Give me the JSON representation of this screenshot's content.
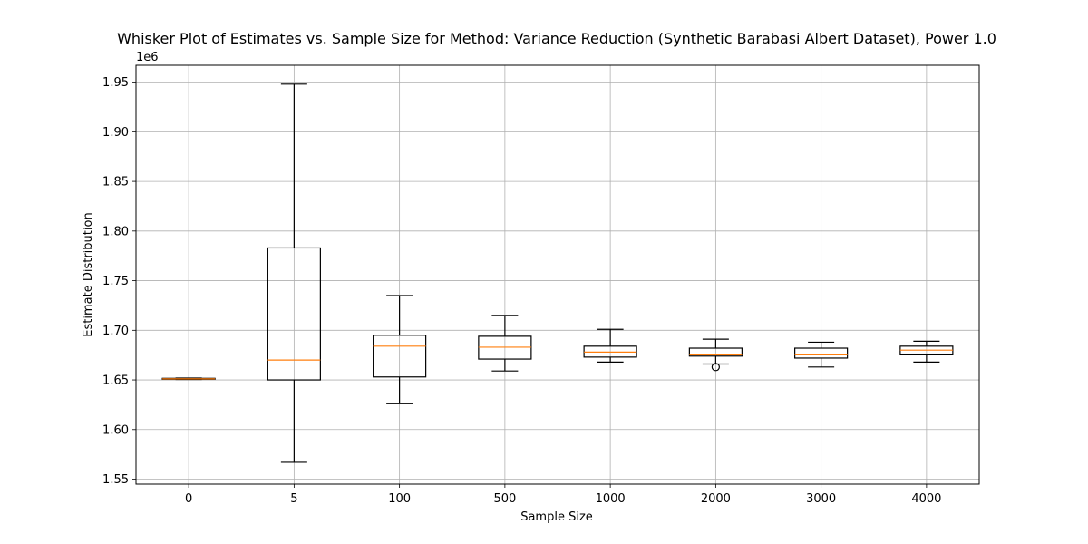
{
  "chart_data": {
    "type": "boxplot",
    "title": "Whisker Plot of Estimates vs. Sample Size for Method: Variance Reduction (Synthetic Barabasi Albert Dataset), Power 1.0",
    "xlabel": "Sample Size",
    "ylabel": "Estimate Distribution",
    "y_offset_label": "1e6",
    "ylim": [
      1.545,
      1.967
    ],
    "y_ticks": [
      1.55,
      1.6,
      1.65,
      1.7,
      1.75,
      1.8,
      1.85,
      1.9,
      1.95
    ],
    "y_tick_labels": [
      "1.55",
      "1.60",
      "1.65",
      "1.70",
      "1.75",
      "1.80",
      "1.85",
      "1.90",
      "1.95"
    ],
    "grid": true,
    "categories": [
      "0",
      "5",
      "100",
      "500",
      "1000",
      "2000",
      "3000",
      "4000"
    ],
    "boxes": [
      {
        "whislo": 1.6505,
        "q1": 1.6508,
        "med": 1.6511,
        "q3": 1.6516,
        "whishi": 1.6519,
        "fliers": []
      },
      {
        "whislo": 1.567,
        "q1": 1.65,
        "med": 1.67,
        "q3": 1.783,
        "whishi": 1.948,
        "fliers": []
      },
      {
        "whislo": 1.626,
        "q1": 1.653,
        "med": 1.684,
        "q3": 1.695,
        "whishi": 1.735,
        "fliers": []
      },
      {
        "whislo": 1.659,
        "q1": 1.671,
        "med": 1.683,
        "q3": 1.694,
        "whishi": 1.715,
        "fliers": []
      },
      {
        "whislo": 1.668,
        "q1": 1.673,
        "med": 1.678,
        "q3": 1.684,
        "whishi": 1.701,
        "fliers": []
      },
      {
        "whislo": 1.666,
        "q1": 1.674,
        "med": 1.676,
        "q3": 1.682,
        "whishi": 1.691,
        "fliers": [
          1.663
        ]
      },
      {
        "whislo": 1.663,
        "q1": 1.672,
        "med": 1.676,
        "q3": 1.682,
        "whishi": 1.688,
        "fliers": []
      },
      {
        "whislo": 1.668,
        "q1": 1.676,
        "med": 1.68,
        "q3": 1.684,
        "whishi": 1.689,
        "fliers": []
      }
    ],
    "colors": {
      "box": "#000000",
      "median": "#ff7f0e",
      "grid": "#b0b0b0",
      "background": "#ffffff"
    }
  }
}
